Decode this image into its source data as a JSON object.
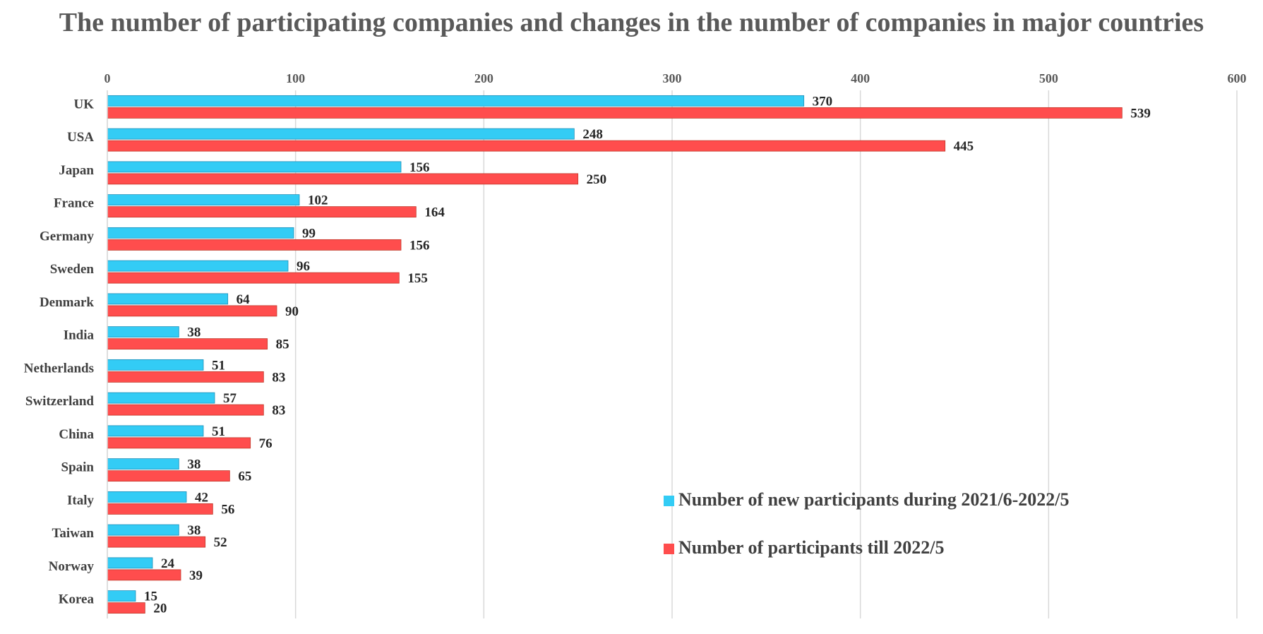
{
  "chart_data": {
    "type": "bar",
    "orientation": "horizontal",
    "title": "The number of participating companies and changes in the number of companies in major countries",
    "categories": [
      "UK",
      "USA",
      "Japan",
      "France",
      "Germany",
      "Sweden",
      "Denmark",
      "India",
      "Netherlands",
      "Switzerland",
      "China",
      "Spain",
      "Italy",
      "Taiwan",
      "Norway",
      "Korea"
    ],
    "series": [
      {
        "name": "Number of new participants during 2021/6-2022/5",
        "color": "#33CCF5",
        "values": [
          370,
          248,
          156,
          102,
          99,
          96,
          64,
          38,
          51,
          57,
          51,
          38,
          42,
          38,
          24,
          15
        ]
      },
      {
        "name": "Number of participants till 2022/5",
        "color": "#FF4D4D",
        "values": [
          539,
          445,
          250,
          164,
          156,
          155,
          90,
          85,
          83,
          83,
          76,
          65,
          56,
          52,
          39,
          20
        ]
      }
    ],
    "xlim": [
      0,
      600
    ],
    "xticks": [
      0,
      100,
      200,
      300,
      400,
      500,
      600
    ],
    "xaxis_position": "top",
    "grid": true,
    "legend_position": "bottom-right",
    "data_labels": true
  }
}
